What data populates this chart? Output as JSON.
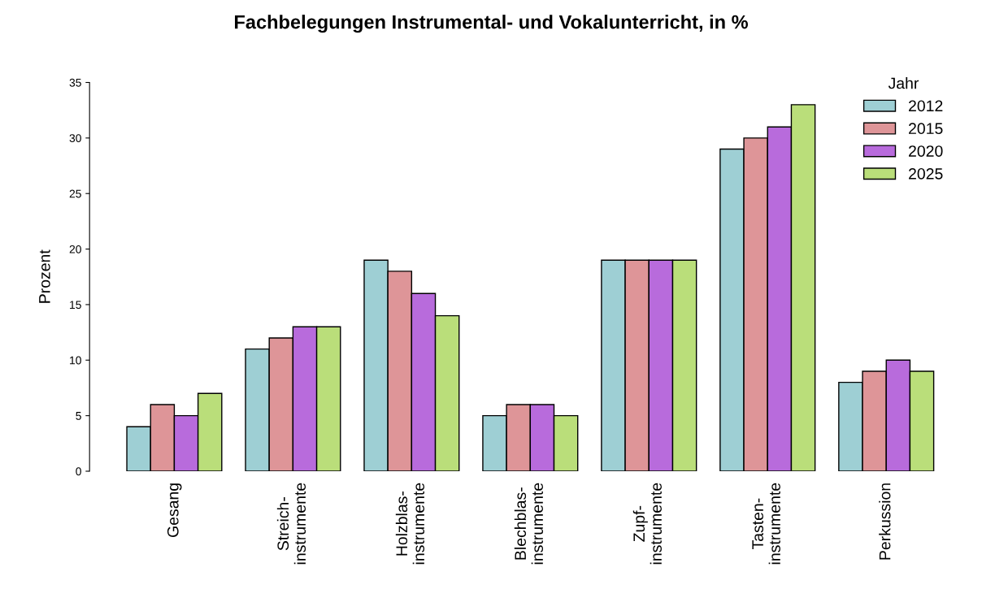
{
  "chart_data": {
    "type": "bar",
    "title": "Fachbelegungen Instrumental- und Vokalunterricht, in %",
    "ylabel": "Prozent",
    "legend_title": "Jahr",
    "categories": [
      "Gesang",
      "Streich-\ninstrumente",
      "Holzblas-\ninstrumente",
      "Blechblas-\ninstrumente",
      "Zupf-\ninstrumente",
      "Tasten-\ninstrumente",
      "Perkussion"
    ],
    "series": [
      {
        "name": "2012",
        "color": "#9ecfd4",
        "values": [
          4,
          11,
          19,
          5,
          19,
          29,
          8
        ]
      },
      {
        "name": "2015",
        "color": "#de9598",
        "values": [
          6,
          12,
          18,
          6,
          19,
          30,
          9
        ]
      },
      {
        "name": "2020",
        "color": "#b86bdc",
        "values": [
          5,
          13,
          16,
          6,
          19,
          31,
          10
        ]
      },
      {
        "name": "2025",
        "color": "#bade7a",
        "values": [
          7,
          13,
          14,
          5,
          19,
          33,
          9
        ]
      }
    ],
    "ylim": [
      0,
      35
    ],
    "yticks": [
      0,
      5,
      10,
      15,
      20,
      25,
      30,
      35
    ],
    "grid": false,
    "legend": "top right"
  }
}
